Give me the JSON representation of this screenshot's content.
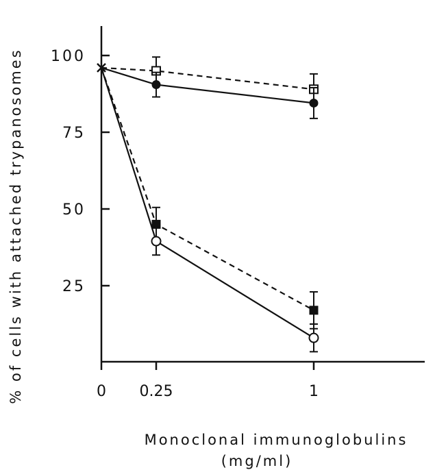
{
  "chart_data": {
    "type": "line",
    "xlabel": "Monoclonal immunoglobulins",
    "xlabel_units": "(mg/ml)",
    "ylabel": "% of cells with attached trypanosomes",
    "x_ticks": [
      {
        "value": 0,
        "label": "0"
      },
      {
        "value": 0.25,
        "label": "0.25"
      },
      {
        "value": 1,
        "label": "1"
      }
    ],
    "y_ticks": [
      {
        "value": 25,
        "label": "25"
      },
      {
        "value": 50,
        "label": "50"
      },
      {
        "value": 75,
        "label": "75"
      },
      {
        "value": 100,
        "label": "100"
      }
    ],
    "series": [
      {
        "marker": "open-square",
        "dash": true,
        "x": [
          0,
          0.25,
          1
        ],
        "y": [
          96,
          95,
          89
        ],
        "err": [
          0,
          4.5,
          5
        ]
      },
      {
        "marker": "filled-circle",
        "dash": false,
        "x": [
          0,
          0.25,
          1
        ],
        "y": [
          96,
          90.5,
          84.5
        ],
        "err": [
          0,
          4,
          5
        ]
      },
      {
        "marker": "filled-square",
        "dash": true,
        "x": [
          0,
          0.25,
          1
        ],
        "y": [
          96,
          45,
          17
        ],
        "err": [
          0,
          5.5,
          6
        ]
      },
      {
        "marker": "open-circle",
        "dash": false,
        "x": [
          0,
          0.25,
          1
        ],
        "y": [
          96,
          39.5,
          8
        ],
        "err": [
          0,
          4.5,
          4.5
        ]
      }
    ]
  }
}
